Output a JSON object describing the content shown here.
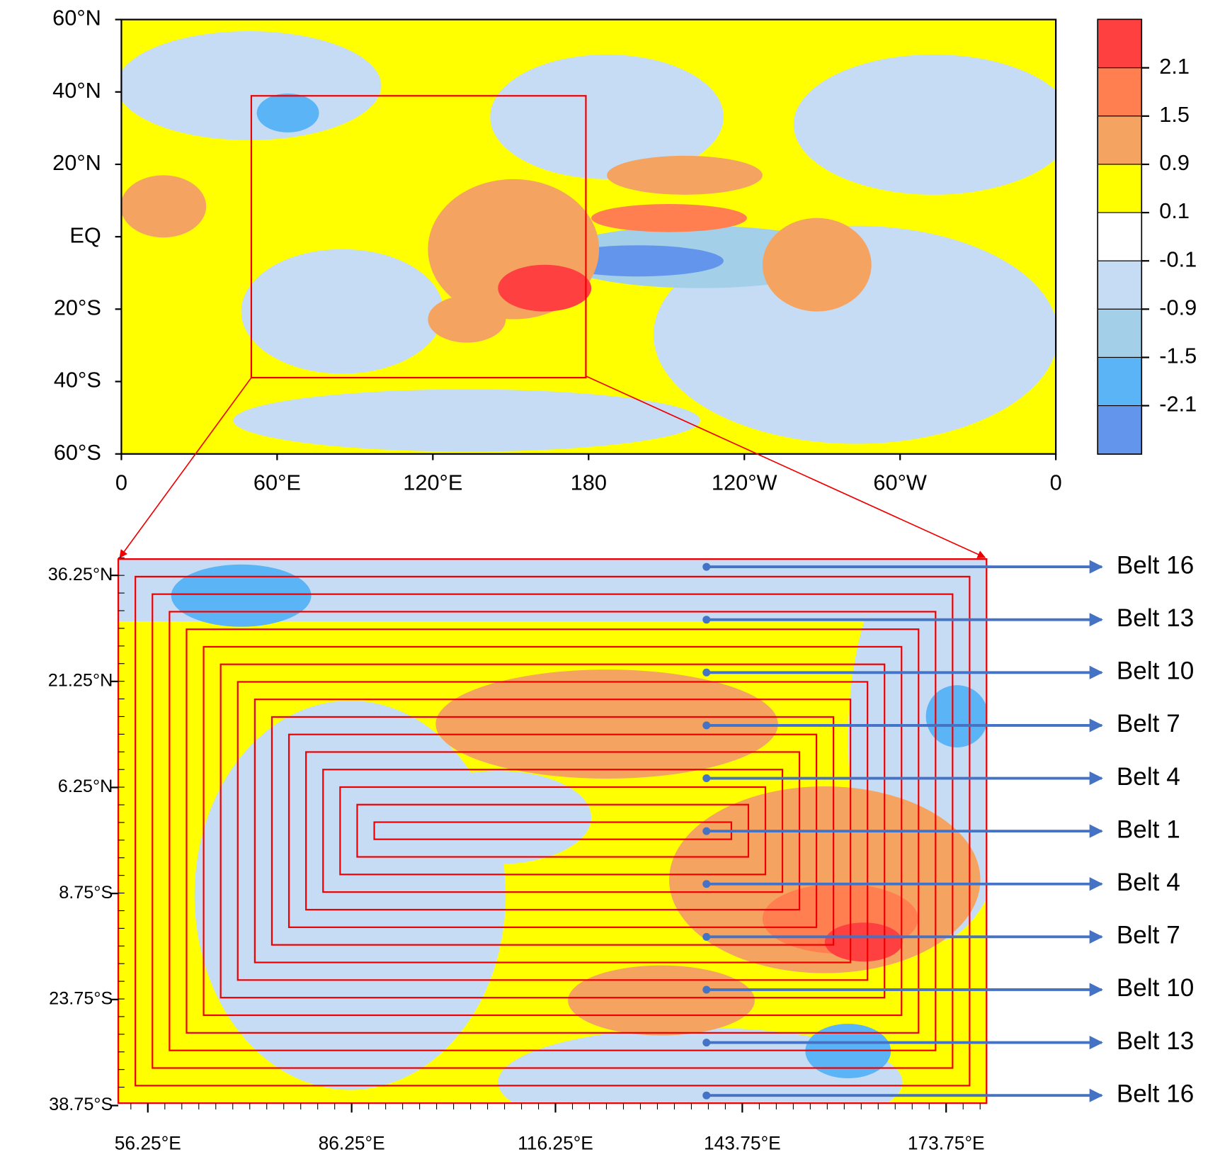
{
  "top_map": {
    "lat_ticks": [
      {
        "value": 60,
        "label": "60°N"
      },
      {
        "value": 40,
        "label": "40°N"
      },
      {
        "value": 20,
        "label": "20°N"
      },
      {
        "value": 0,
        "label": "EQ"
      },
      {
        "value": -20,
        "label": "20°S"
      },
      {
        "value": -40,
        "label": "40°S"
      },
      {
        "value": -60,
        "label": "60°S"
      }
    ],
    "lon_ticks": [
      0,
      {
        "value": 60,
        "label": "60°E"
      },
      {
        "value": 120,
        "label": "120°E"
      },
      {
        "value": 180,
        "label": "180"
      },
      {
        "value": 240,
        "label": "120°W"
      },
      {
        "value": 300,
        "label": "60°W"
      },
      {
        "value": 360,
        "label": "0"
      }
    ]
  },
  "colorbar": {
    "levels": [
      2.1,
      1.5,
      0.9,
      0.1,
      -0.1,
      -0.9,
      -1.5,
      -2.1
    ],
    "colors": [
      "#ff4040",
      "#ff7f50",
      "#f4a460",
      "#ffff00",
      "#ffffff",
      "#c6dcf5",
      "#a3d0e8",
      "#5ab4f5",
      "#6495ed"
    ]
  },
  "bottom_map": {
    "lat_ticks": [
      {
        "value": 36.25,
        "label": "36.25°N"
      },
      {
        "value": 21.25,
        "label": "21.25°N"
      },
      {
        "value": 6.25,
        "label": "6.25°N"
      },
      {
        "value": -8.75,
        "label": "8.75°S"
      },
      {
        "value": -23.75,
        "label": "23.75°S"
      },
      {
        "value": -38.75,
        "label": "38.75°S"
      }
    ],
    "lon_ticks": [
      {
        "value": 56.25,
        "label": "56.25°E"
      },
      {
        "value": 86.25,
        "label": "86.25°E"
      },
      {
        "value": 116.25,
        "label": "116.25°E"
      },
      {
        "value": 143.75,
        "label": "143.75°E"
      },
      {
        "value": 173.75,
        "label": "173.75°E"
      }
    ]
  },
  "belts": [
    "Belt 16",
    "Belt 13",
    "Belt 10",
    "Belt 7",
    "Belt 4",
    "Belt 1",
    "Belt 4",
    "Belt 7",
    "Belt 10",
    "Belt 13",
    "Belt 16"
  ]
}
